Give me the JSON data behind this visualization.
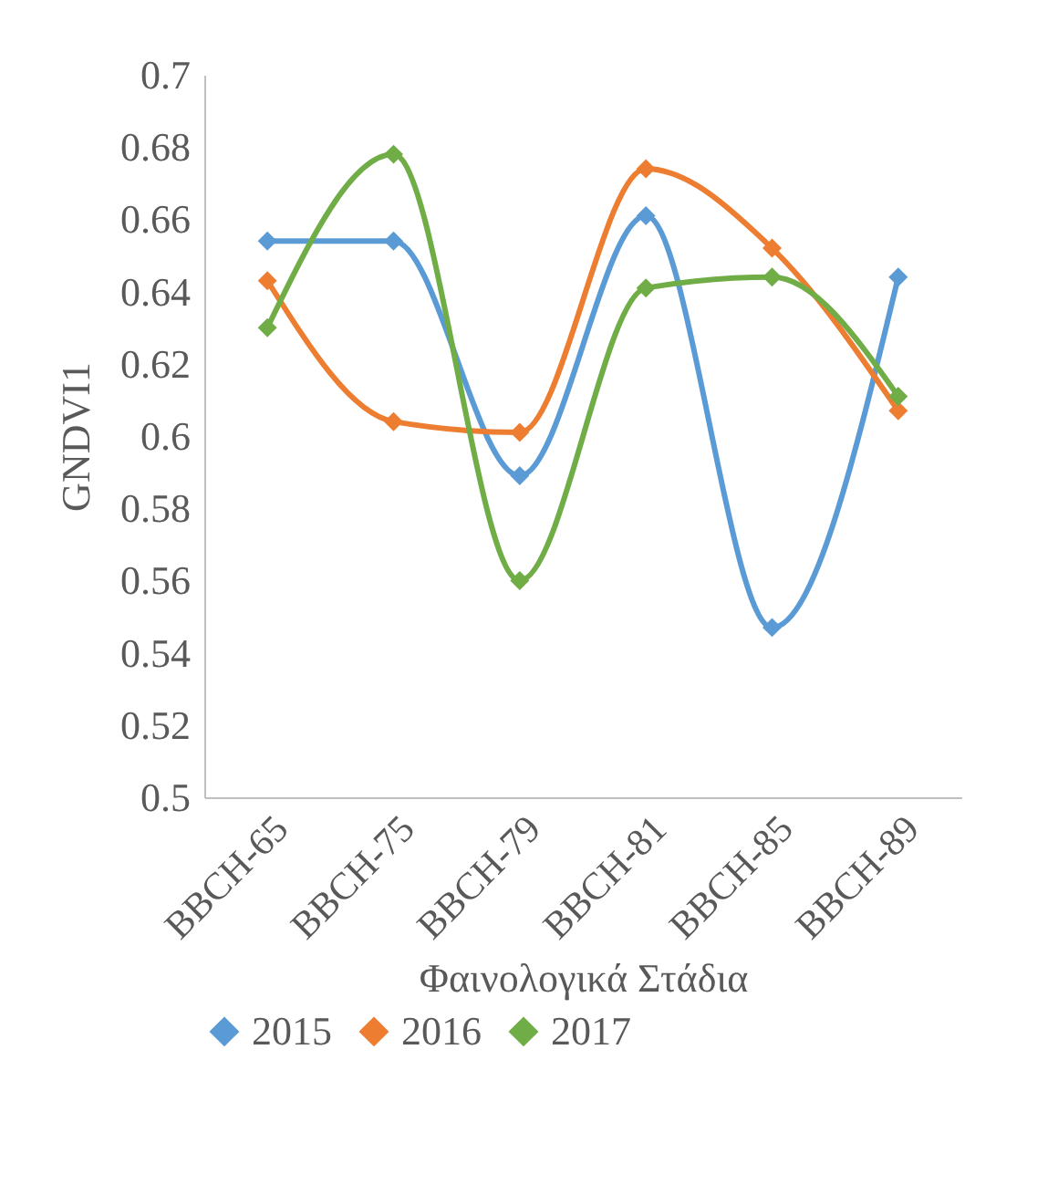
{
  "chart_data": {
    "type": "line",
    "xlabel": "Φαινολογικά Στάδια",
    "ylabel": "GNDVI1",
    "categories": [
      "BBCH-65",
      "BBCH-75",
      "BBCH-79",
      "BBCH-81",
      "BBCH-85",
      "BBCH-89"
    ],
    "series": [
      {
        "name": "2015",
        "color": "#5b9bd5",
        "values": [
          0.654,
          0.654,
          0.589,
          0.661,
          0.547,
          0.644
        ]
      },
      {
        "name": "2016",
        "color": "#ed7d31",
        "values": [
          0.643,
          0.604,
          0.601,
          0.674,
          0.652,
          0.607
        ]
      },
      {
        "name": "2017",
        "color": "#70ad47",
        "values": [
          0.63,
          0.678,
          0.56,
          0.641,
          0.644,
          0.611
        ]
      }
    ],
    "ylim": [
      0.5,
      0.7
    ],
    "yticks": [
      0.5,
      0.52,
      0.54,
      0.56,
      0.58,
      0.6,
      0.62,
      0.64,
      0.66,
      0.68,
      0.7
    ],
    "grid": false,
    "legend": "bottom",
    "marker": "diamond",
    "line_style": "solid"
  }
}
